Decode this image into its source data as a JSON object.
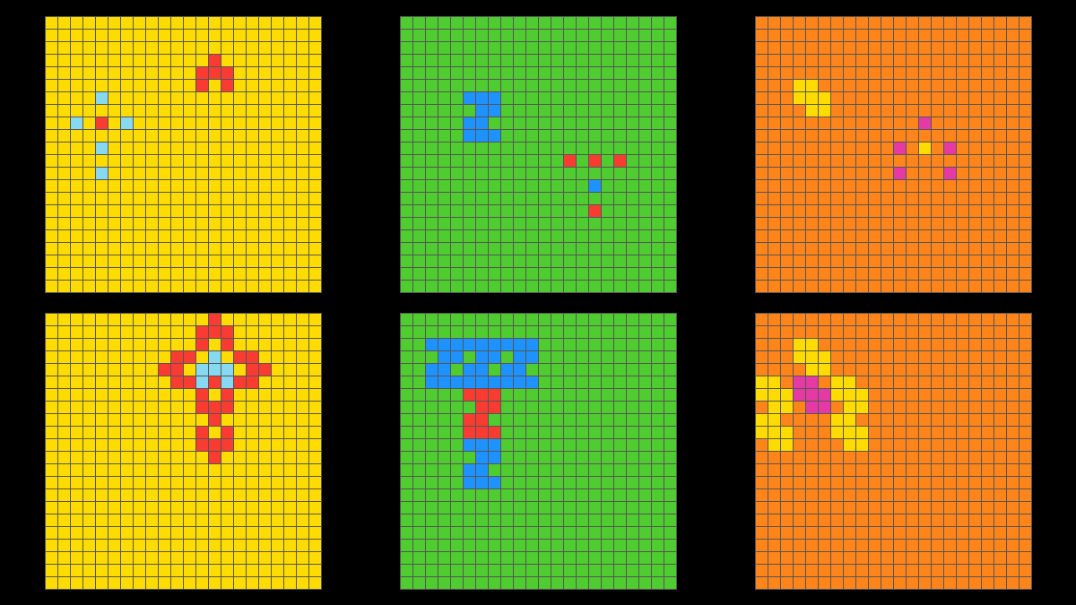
{
  "size": 22,
  "grids": [
    {
      "background": "#FFDC00",
      "cells": {
        "#F93C31": [
          [
            3,
            13
          ],
          [
            4,
            12
          ],
          [
            4,
            13
          ],
          [
            4,
            14
          ],
          [
            5,
            12
          ],
          [
            5,
            14
          ],
          [
            8,
            4
          ]
        ],
        "#87D8F1": [
          [
            6,
            4
          ],
          [
            8,
            2
          ],
          [
            8,
            6
          ],
          [
            10,
            4
          ],
          [
            12,
            4
          ]
        ]
      }
    },
    {
      "background": "#4FCC30",
      "cells": {
        "#1E93FF": [
          [
            6,
            5
          ],
          [
            6,
            6
          ],
          [
            6,
            7
          ],
          [
            7,
            6
          ],
          [
            7,
            7
          ],
          [
            8,
            5
          ],
          [
            8,
            6
          ],
          [
            9,
            5
          ],
          [
            9,
            6
          ],
          [
            9,
            7
          ],
          [
            13,
            15
          ]
        ],
        "#F93C31": [
          [
            11,
            13
          ],
          [
            11,
            15
          ],
          [
            11,
            17
          ],
          [
            15,
            15
          ]
        ]
      }
    },
    {
      "background": "#FF851B",
      "cells": {
        "#FFDC00": [
          [
            5,
            3
          ],
          [
            5,
            4
          ],
          [
            6,
            3
          ],
          [
            6,
            4
          ],
          [
            6,
            5
          ],
          [
            7,
            4
          ],
          [
            7,
            5
          ],
          [
            10,
            13
          ]
        ],
        "#E53AA3": [
          [
            8,
            13
          ],
          [
            10,
            11
          ],
          [
            10,
            15
          ],
          [
            12,
            11
          ],
          [
            12,
            15
          ]
        ]
      }
    },
    {
      "background": "#FFDC00",
      "cells": {
        "#F93C31": [
          [
            0,
            13
          ],
          [
            1,
            12
          ],
          [
            1,
            13
          ],
          [
            1,
            14
          ],
          [
            2,
            12
          ],
          [
            2,
            14
          ],
          [
            4,
            9
          ],
          [
            3,
            10
          ],
          [
            4,
            10
          ],
          [
            5,
            10
          ],
          [
            3,
            11
          ],
          [
            5,
            11
          ],
          [
            4,
            17
          ],
          [
            3,
            16
          ],
          [
            4,
            16
          ],
          [
            5,
            16
          ],
          [
            3,
            15
          ],
          [
            5,
            15
          ],
          [
            5,
            13
          ],
          [
            6,
            12
          ],
          [
            6,
            14
          ],
          [
            7,
            12
          ],
          [
            7,
            13
          ],
          [
            7,
            14
          ],
          [
            8,
            13
          ],
          [
            9,
            12
          ],
          [
            9,
            14
          ],
          [
            10,
            12
          ],
          [
            10,
            13
          ],
          [
            10,
            14
          ],
          [
            11,
            13
          ]
        ],
        "#87D8F1": [
          [
            3,
            13
          ],
          [
            4,
            12
          ],
          [
            4,
            13
          ],
          [
            4,
            14
          ],
          [
            5,
            12
          ],
          [
            5,
            14
          ]
        ]
      }
    },
    {
      "background": "#4FCC30",
      "cells": {
        "#1E93FF": [
          [
            2,
            2
          ],
          [
            2,
            3
          ],
          [
            2,
            4
          ],
          [
            3,
            3
          ],
          [
            3,
            4
          ],
          [
            4,
            2
          ],
          [
            4,
            3
          ],
          [
            5,
            2
          ],
          [
            5,
            3
          ],
          [
            5,
            4
          ],
          [
            2,
            5
          ],
          [
            2,
            6
          ],
          [
            2,
            7
          ],
          [
            3,
            6
          ],
          [
            3,
            7
          ],
          [
            4,
            5
          ],
          [
            4,
            6
          ],
          [
            5,
            5
          ],
          [
            5,
            6
          ],
          [
            5,
            7
          ],
          [
            2,
            8
          ],
          [
            2,
            9
          ],
          [
            2,
            10
          ],
          [
            3,
            9
          ],
          [
            3,
            10
          ],
          [
            4,
            8
          ],
          [
            4,
            9
          ],
          [
            5,
            8
          ],
          [
            5,
            9
          ],
          [
            5,
            10
          ],
          [
            10,
            5
          ],
          [
            10,
            6
          ],
          [
            10,
            7
          ],
          [
            11,
            6
          ],
          [
            11,
            7
          ],
          [
            12,
            5
          ],
          [
            12,
            6
          ],
          [
            13,
            5
          ],
          [
            13,
            6
          ],
          [
            13,
            7
          ]
        ],
        "#F93C31": [
          [
            6,
            5
          ],
          [
            6,
            6
          ],
          [
            6,
            7
          ],
          [
            7,
            6
          ],
          [
            7,
            7
          ],
          [
            8,
            5
          ],
          [
            8,
            6
          ],
          [
            9,
            5
          ],
          [
            9,
            6
          ],
          [
            9,
            7
          ]
        ]
      }
    },
    {
      "background": "#FF851B",
      "cells": {
        "#FFDC00": [
          [
            2,
            3
          ],
          [
            2,
            4
          ],
          [
            3,
            3
          ],
          [
            3,
            4
          ],
          [
            3,
            5
          ],
          [
            4,
            4
          ],
          [
            4,
            5
          ],
          [
            5,
            0
          ],
          [
            5,
            1
          ],
          [
            6,
            0
          ],
          [
            6,
            1
          ],
          [
            6,
            2
          ],
          [
            7,
            1
          ],
          [
            7,
            2
          ],
          [
            8,
            0
          ],
          [
            8,
            1
          ],
          [
            9,
            0
          ],
          [
            9,
            1
          ],
          [
            9,
            2
          ],
          [
            10,
            1
          ],
          [
            10,
            2
          ],
          [
            5,
            6
          ],
          [
            5,
            7
          ],
          [
            6,
            6
          ],
          [
            6,
            7
          ],
          [
            6,
            8
          ],
          [
            7,
            7
          ],
          [
            7,
            8
          ],
          [
            8,
            6
          ],
          [
            8,
            7
          ],
          [
            9,
            6
          ],
          [
            9,
            7
          ],
          [
            9,
            8
          ],
          [
            10,
            7
          ],
          [
            10,
            8
          ]
        ],
        "#E53AA3": [
          [
            5,
            3
          ],
          [
            5,
            4
          ],
          [
            6,
            3
          ],
          [
            6,
            4
          ],
          [
            6,
            5
          ],
          [
            7,
            4
          ],
          [
            7,
            5
          ]
        ]
      }
    }
  ]
}
